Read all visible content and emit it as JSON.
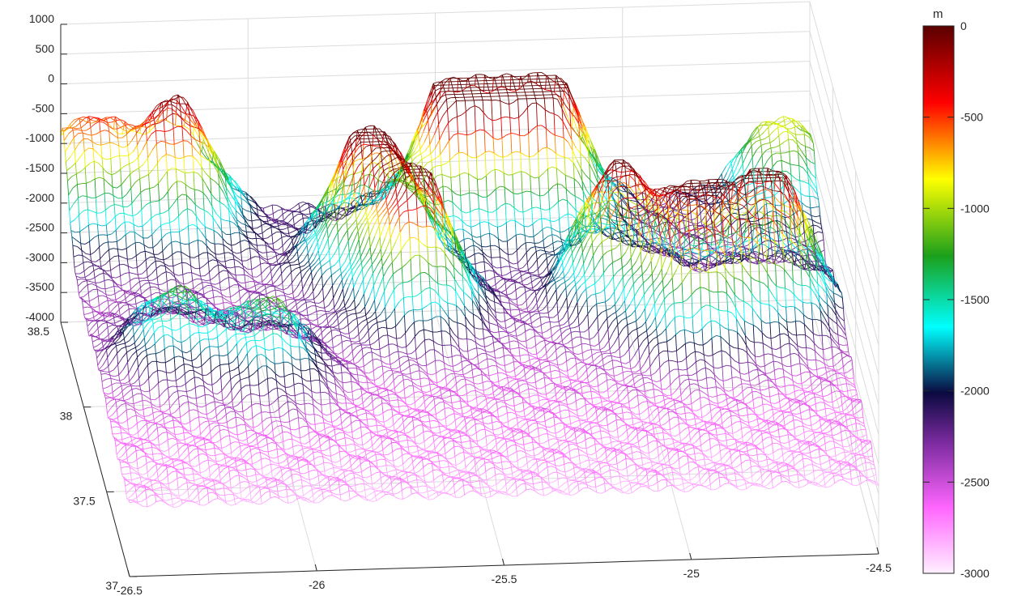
{
  "chart_data": {
    "type": "surface-mesh",
    "title": "",
    "xlabel": "",
    "ylabel": "",
    "zlabel": "",
    "x_ticks": [
      "-26.5",
      "-26",
      "-25.5",
      "-25",
      "-24.5"
    ],
    "y_ticks": [
      "37",
      "37.5",
      "38",
      "38.5"
    ],
    "z_ticks": [
      "1000",
      "500",
      "0",
      "-500",
      "-1000",
      "-1500",
      "-2000",
      "-2500",
      "-3000",
      "-3500",
      "-4000"
    ],
    "xlim": [
      -26.5,
      -24.5
    ],
    "ylim": [
      37,
      38.5
    ],
    "zlim": [
      -4000,
      1000
    ],
    "grid": true,
    "colorbar": {
      "unit": "m",
      "ticks": [
        "0",
        "-500",
        "-1000",
        "-1500",
        "-2000",
        "-2500",
        "-3000"
      ],
      "range": [
        -3000,
        0
      ],
      "colors": [
        "#fff0ff",
        "#ff66ff",
        "#7a2a9e",
        "#0a0a40",
        "#00ffff",
        "#1ba01b",
        "#ffff00",
        "#ff0000",
        "#5a0000"
      ]
    },
    "features": [
      {
        "x": -25.45,
        "y": 38.4,
        "depth": -150
      },
      {
        "x": -25.22,
        "y": 38.4,
        "depth": -100
      },
      {
        "x": -25.72,
        "y": 38.15,
        "depth": -350
      },
      {
        "x": -25.62,
        "y": 37.9,
        "depth": -420
      },
      {
        "x": -25.08,
        "y": 37.95,
        "depth": -500
      },
      {
        "x": -24.9,
        "y": 37.75,
        "depth": -250
      },
      {
        "x": -24.68,
        "y": 37.85,
        "depth": -300
      },
      {
        "x": -26.2,
        "y": 38.4,
        "depth": -700
      },
      {
        "x": -26.3,
        "y": 37.7,
        "depth": -1600
      },
      {
        "x": -26.05,
        "y": 37.6,
        "depth": -1500
      },
      {
        "x": -26.45,
        "y": 38.45,
        "depth": -1100
      },
      {
        "x": -24.58,
        "y": 38.45,
        "depth": -1400
      }
    ]
  }
}
